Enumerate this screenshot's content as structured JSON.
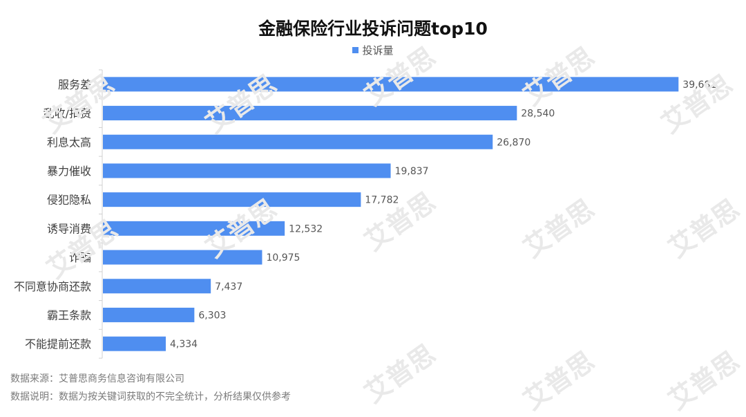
{
  "title": "金融保险行业投诉问题top10",
  "legend": {
    "label": "投诉量",
    "color": "#4f8ef0"
  },
  "footer": {
    "source": "数据来源：艾普思商务信息咨询有限公司",
    "note": "数据说明：数据为按关键词获取的不完全统计，分析结果仅供参考"
  },
  "watermark": "艾普思",
  "chart_data": {
    "type": "bar",
    "orientation": "horizontal",
    "title": "金融保险行业投诉问题top10",
    "categories": [
      "服务差",
      "乱收/扣费",
      "利息太高",
      "暴力催收",
      "侵犯隐私",
      "诱导消费",
      "诈骗",
      "不同意协商还款",
      "霸王条款",
      "不能提前还款"
    ],
    "series": [
      {
        "name": "投诉量",
        "values": [
          39681,
          28540,
          26870,
          19837,
          17782,
          12532,
          10975,
          7437,
          6303,
          4334
        ],
        "labels": [
          "39,681",
          "28,540",
          "26,870",
          "19,837",
          "17,782",
          "12,532",
          "10,975",
          "7,437",
          "6,303",
          "4,334"
        ]
      }
    ],
    "xlim": [
      0,
      40000
    ],
    "grid": false,
    "legend_position": "top"
  }
}
